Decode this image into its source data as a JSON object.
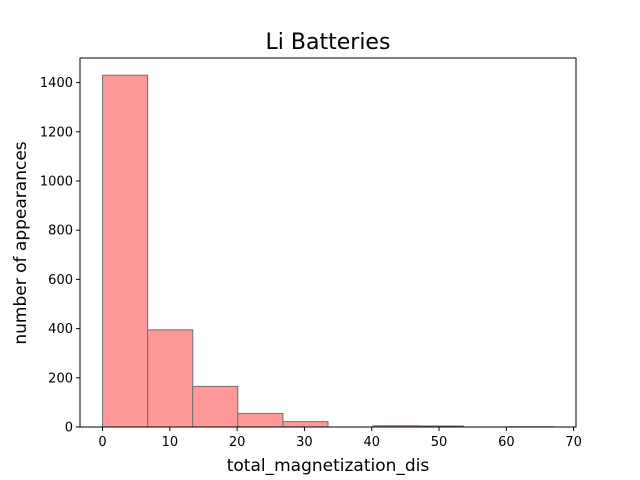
{
  "chart_data": {
    "type": "bar",
    "title": "Li Batteries",
    "xlabel": "total_magnetization_dis",
    "ylabel": "number of appearances",
    "bin_edges": [
      0,
      6.7,
      13.4,
      20.1,
      26.8,
      33.5,
      40.2,
      46.9,
      53.6,
      60.3,
      67
    ],
    "values": [
      1430,
      395,
      165,
      55,
      22,
      0,
      5,
      4,
      0,
      1
    ],
    "xlim": [
      -3.35,
      70.35
    ],
    "ylim": [
      0,
      1500
    ],
    "xticks": [
      0,
      10,
      20,
      30,
      40,
      50,
      60,
      70
    ],
    "yticks": [
      0,
      200,
      400,
      600,
      800,
      1000,
      1200,
      1400
    ],
    "bar_color": "#ff9999",
    "edge_color": "#707070",
    "grid": false
  }
}
